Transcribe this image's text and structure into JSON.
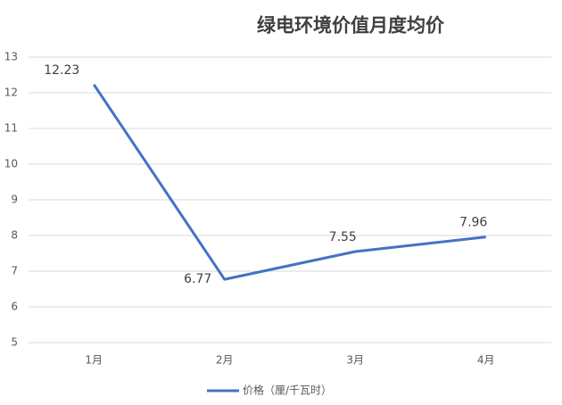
{
  "chart_data": {
    "type": "line",
    "title": "绿电环境价值月度均价",
    "categories": [
      "1月",
      "2月",
      "3月",
      "4月"
    ],
    "series": [
      {
        "name": "价格（厘/千瓦时）",
        "color": "#4472c4",
        "values": [
          12.23,
          6.77,
          7.55,
          7.96
        ]
      }
    ],
    "ylim": [
      5,
      13
    ],
    "yticks": [
      5,
      6,
      7,
      8,
      9,
      10,
      11,
      12,
      13
    ],
    "grid": true
  }
}
